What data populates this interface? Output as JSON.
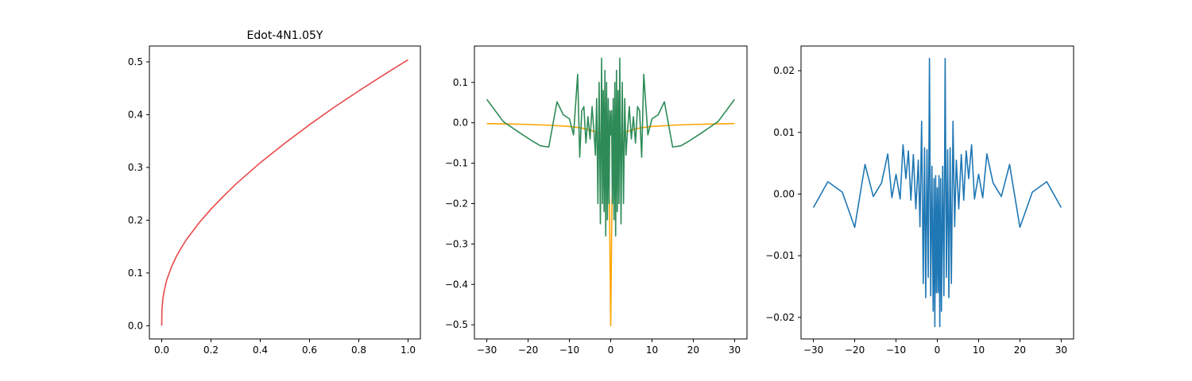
{
  "chart_data": [
    {
      "type": "line",
      "title": "Edot-4N1.05Y",
      "xlabel": "",
      "ylabel": "",
      "xlim": [
        -0.05,
        1.05
      ],
      "ylim": [
        -0.025,
        0.53
      ],
      "xticks": [
        0.0,
        0.2,
        0.4,
        0.6,
        0.8,
        1.0
      ],
      "yticks": [
        0.0,
        0.1,
        0.2,
        0.3,
        0.4,
        0.5
      ],
      "tick_decimals": 1,
      "grid": false,
      "legend": "none",
      "series": [
        {
          "color": "#e8494a",
          "x": [
            0.0,
            0.0005,
            0.002,
            0.005,
            0.01,
            0.02,
            0.04,
            0.06,
            0.08,
            0.1,
            0.15,
            0.2,
            0.25,
            0.3,
            0.4,
            0.5,
            0.6,
            0.7,
            0.8,
            0.9,
            1.0
          ],
          "y": [
            0.0,
            0.022,
            0.037,
            0.052,
            0.066,
            0.086,
            0.112,
            0.132,
            0.148,
            0.163,
            0.194,
            0.221,
            0.245,
            0.268,
            0.309,
            0.346,
            0.381,
            0.414,
            0.445,
            0.475,
            0.504
          ]
        }
      ]
    },
    {
      "type": "line",
      "title": "",
      "xlabel": "",
      "ylabel": "",
      "xlim": [
        -33,
        33
      ],
      "ylim": [
        -0.535,
        0.19
      ],
      "xticks": [
        -30,
        -20,
        -10,
        0,
        10,
        20,
        30
      ],
      "yticks": [
        -0.5,
        -0.4,
        -0.3,
        -0.2,
        -0.1,
        0.0,
        0.1
      ],
      "tick_decimals": 1,
      "grid": false,
      "legend": "none",
      "series": [
        {
          "color": "#ffa500",
          "x": [
            -30,
            -25,
            -20,
            -15,
            -10,
            -7,
            -5,
            -3,
            -2,
            -1.5,
            -1,
            -0.6,
            -0.3,
            0,
            0.3,
            0.6,
            1,
            1.5,
            2,
            3,
            5,
            7,
            10,
            15,
            20,
            25,
            30
          ],
          "y": [
            -0.002,
            -0.003,
            -0.004,
            -0.006,
            -0.009,
            -0.013,
            -0.018,
            -0.025,
            -0.035,
            -0.045,
            -0.06,
            -0.1,
            -0.2,
            -0.502,
            -0.2,
            -0.1,
            -0.06,
            -0.045,
            -0.035,
            -0.025,
            -0.018,
            -0.013,
            -0.009,
            -0.006,
            -0.004,
            -0.003,
            -0.002
          ]
        },
        {
          "color": "#2e8b57",
          "x": [
            -30,
            -26,
            -22,
            -19,
            -17,
            -15,
            -13,
            -11.5,
            -10,
            -9,
            -8,
            -7.5,
            -7,
            -6.5,
            -6,
            -5.5,
            -5,
            -4.5,
            -4,
            -3.7,
            -3.4,
            -3.1,
            -2.8,
            -2.5,
            -2.2,
            -2,
            -1.8,
            -1.6,
            -1.4,
            -1.2,
            -1,
            -0.8,
            -0.6,
            -0.4,
            -0.2,
            0,
            0.2,
            0.4,
            0.6,
            0.8,
            1,
            1.2,
            1.4,
            1.6,
            1.8,
            2,
            2.2,
            2.5,
            2.8,
            3.1,
            3.4,
            3.7,
            4,
            4.5,
            5,
            5.5,
            6,
            6.5,
            7,
            7.5,
            8,
            9,
            10,
            11.5,
            13,
            15,
            17,
            19,
            22,
            26,
            30
          ],
          "y": [
            0.058,
            0.003,
            -0.025,
            -0.045,
            -0.057,
            -0.06,
            0.052,
            0.02,
            0.01,
            -0.03,
            0.12,
            -0.085,
            0.03,
            0.04,
            -0.05,
            0.015,
            -0.04,
            0.04,
            -0.03,
            -0.08,
            0.06,
            -0.2,
            0.1,
            -0.25,
            0.16,
            -0.2,
            0.08,
            -0.22,
            0.13,
            -0.28,
            0.1,
            -0.24,
            0.06,
            -0.2,
            0.03,
            -0.03,
            0.03,
            -0.2,
            0.06,
            -0.24,
            0.1,
            -0.28,
            0.13,
            -0.22,
            0.08,
            -0.2,
            0.16,
            -0.25,
            0.1,
            -0.2,
            0.06,
            -0.08,
            -0.03,
            0.04,
            -0.04,
            0.015,
            -0.05,
            0.04,
            0.03,
            -0.085,
            0.12,
            -0.03,
            0.01,
            0.02,
            0.052,
            -0.06,
            -0.057,
            -0.045,
            -0.025,
            0.003,
            0.058
          ]
        }
      ]
    },
    {
      "type": "line",
      "title": "",
      "xlabel": "",
      "ylabel": "",
      "xlim": [
        -33,
        33
      ],
      "ylim": [
        -0.0235,
        0.024
      ],
      "xticks": [
        -30,
        -20,
        -10,
        0,
        10,
        20,
        30
      ],
      "yticks": [
        -0.02,
        -0.01,
        0.0,
        0.01,
        0.02
      ],
      "tick_decimals": 2,
      "grid": false,
      "legend": "none",
      "series": [
        {
          "color": "#1f77b4",
          "x": [
            -30,
            -26.5,
            -23,
            -20,
            -17.5,
            -15.5,
            -13.5,
            -12,
            -11,
            -10,
            -9,
            -8.3,
            -7.6,
            -7,
            -6.4,
            -5.8,
            -5.2,
            -4.6,
            -4.2,
            -3.8,
            -3.4,
            -3.1,
            -2.8,
            -2.5,
            -2.2,
            -1.9,
            -1.6,
            -1.3,
            -1.0,
            -0.8,
            -0.6,
            -0.4,
            -0.2,
            0,
            0.2,
            0.4,
            0.6,
            0.8,
            1.0,
            1.3,
            1.6,
            1.9,
            2.2,
            2.5,
            2.8,
            3.1,
            3.4,
            3.8,
            4.2,
            4.6,
            5.2,
            5.8,
            6.4,
            7,
            7.6,
            8.3,
            9,
            10,
            11,
            12,
            13.5,
            15.5,
            17.5,
            20,
            23,
            26.5,
            30
          ],
          "y": [
            -0.0022,
            0.002,
            0.0003,
            -0.0054,
            0.0048,
            -0.0004,
            0.0018,
            0.0065,
            -0.0006,
            0.0032,
            -0.0008,
            0.008,
            0.0025,
            0.007,
            -0.001,
            0.0064,
            -0.0024,
            0.0055,
            -0.0053,
            0.0118,
            -0.0145,
            0.0075,
            -0.0168,
            0.0072,
            -0.0135,
            0.022,
            -0.0165,
            0.0045,
            -0.019,
            0.0025,
            -0.0215,
            0.003,
            -0.016,
            0.001,
            -0.016,
            0.003,
            -0.0215,
            0.0025,
            -0.019,
            0.0045,
            -0.0165,
            0.022,
            -0.0135,
            0.0072,
            -0.0168,
            0.0075,
            -0.0145,
            0.0118,
            -0.0053,
            0.0055,
            -0.0024,
            0.0064,
            -0.001,
            0.007,
            0.0025,
            0.008,
            -0.0008,
            0.0032,
            -0.0006,
            0.0065,
            0.0018,
            -0.0004,
            0.0048,
            -0.0054,
            0.0003,
            0.002,
            -0.0022
          ]
        }
      ]
    }
  ]
}
